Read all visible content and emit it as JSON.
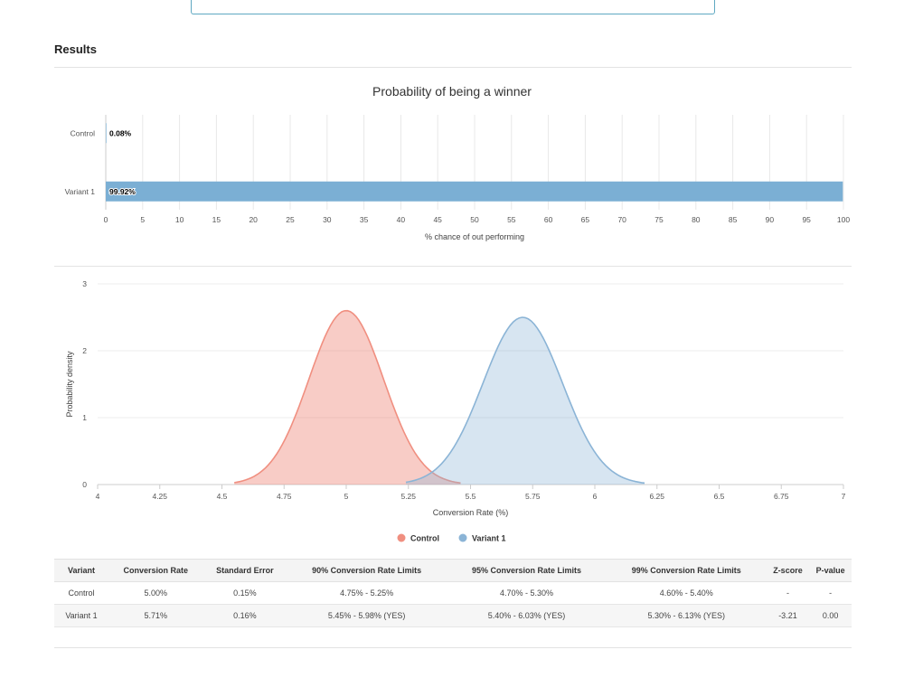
{
  "section_title": "Results",
  "chart_data": [
    {
      "type": "bar",
      "orientation": "horizontal",
      "title": "Probability of being a winner",
      "xlabel": "% chance of out performing",
      "ylabel": "",
      "categories": [
        "Control",
        "Variant 1"
      ],
      "values": [
        0.08,
        99.92
      ],
      "labels": [
        "0.08%",
        "99.92%"
      ],
      "xlim": [
        0,
        100
      ],
      "xticks": [
        0,
        5,
        10,
        15,
        20,
        25,
        30,
        35,
        40,
        45,
        50,
        55,
        60,
        65,
        70,
        75,
        80,
        85,
        90,
        95,
        100
      ],
      "bar_color": "#7bafd4",
      "grid": true
    },
    {
      "type": "area",
      "title": "",
      "xlabel": "Conversion Rate (%)",
      "ylabel": "Probability density",
      "xlim": [
        4,
        7
      ],
      "ylim": [
        0,
        3
      ],
      "xticks": [
        "4",
        "4.25",
        "4.5",
        "4.75",
        "5",
        "5.25",
        "5.5",
        "5.75",
        "6",
        "6.25",
        "6.5",
        "6.75",
        "7"
      ],
      "yticks": [
        "0",
        "1",
        "2",
        "3"
      ],
      "legend": "bottom-center",
      "grid": true,
      "series": [
        {
          "name": "Control",
          "mean": 5.0,
          "std_error": 0.15,
          "peak_density": 2.6,
          "range": [
            4.55,
            5.46
          ],
          "color": "#f08f80"
        },
        {
          "name": "Variant 1",
          "mean": 5.71,
          "std_error": 0.16,
          "peak_density": 2.5,
          "range": [
            5.24,
            6.2
          ],
          "color": "#8bb4d6"
        }
      ]
    },
    {
      "type": "table",
      "columns": [
        "Variant",
        "Conversion Rate",
        "Standard Error",
        "90% Conversion Rate Limits",
        "95% Conversion Rate Limits",
        "99% Conversion Rate Limits",
        "Z-score",
        "P-value"
      ],
      "rows": [
        [
          "Control",
          "5.00%",
          "0.15%",
          "4.75% - 5.25%",
          "4.70% - 5.30%",
          "4.60% - 5.40%",
          "-",
          "-"
        ],
        [
          "Variant 1",
          "5.71%",
          "0.16%",
          "5.45% - 5.98% (YES)",
          "5.40% - 6.03% (YES)",
          "5.30% - 6.13% (YES)",
          "-3.21",
          "0.00"
        ]
      ]
    }
  ]
}
